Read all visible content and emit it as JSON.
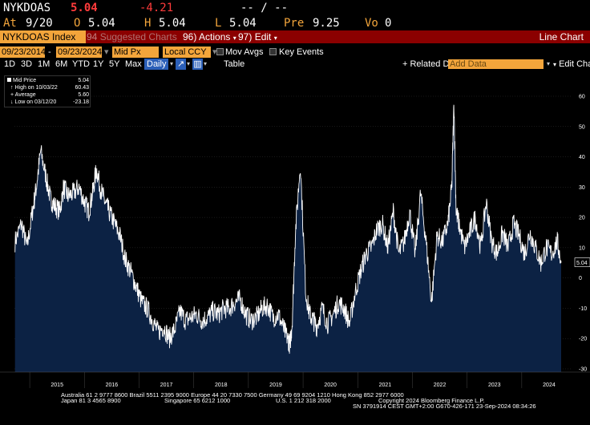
{
  "quote": {
    "ticker": "NYKDOAS",
    "last": "5.04",
    "change": "-4.21",
    "time_dashes": "-- / --",
    "at_label": "At",
    "date": "9/20",
    "open_label": "O",
    "open": "5.04",
    "high_label": "H",
    "high": "5.04",
    "low_label": "L",
    "low": "5.04",
    "prev_label": "Pre",
    "prev": "9.25",
    "vol_label": "Vo",
    "vol": "0"
  },
  "toolbar": {
    "security": "NYKDOAS Index",
    "suggested": "Suggested Charts",
    "actions_num": "96",
    "actions": "Actions",
    "edit_num": "97",
    "edit": "Edit",
    "title": "Line Chart"
  },
  "params": {
    "start": "09/23/2014",
    "end": "09/23/2024",
    "field": "Mid Px",
    "currency": "Local CCY",
    "mov_avgs": "Mov Avgs",
    "key_events": "Key Events"
  },
  "periods": [
    "1D",
    "3D",
    "1M",
    "6M",
    "YTD",
    "1Y",
    "5Y",
    "Max"
  ],
  "freq": "Daily",
  "table_label": "Table",
  "related": "+ Related Dat",
  "add_data_placeholder": "Add Data",
  "edit_chart": "Edit Chart",
  "legend": {
    "mid_price_label": "Mid Price",
    "mid_price": "5.04",
    "high_label": "High on 10/03/22",
    "high": "60.43",
    "avg_label": "Average",
    "avg": "5.60",
    "low_label": "Low on 03/12/20",
    "low": "-23.18"
  },
  "colors": {
    "fill": "#0c2244",
    "line": "#ffffff",
    "accent": "#f3a53b",
    "bar": "#8b0000"
  },
  "chart_data": {
    "type": "area",
    "ylim": [
      -30,
      65
    ],
    "yticks": [
      -30,
      -20,
      -10,
      0,
      10,
      20,
      30,
      40,
      50,
      60
    ],
    "years": [
      "2015",
      "2016",
      "2017",
      "2018",
      "2019",
      "2020",
      "2021",
      "2022",
      "2023",
      "2024"
    ],
    "last_value_label": "5.04",
    "series": [
      {
        "x": [
          2014.73,
          2014.85,
          2014.95,
          2015.05,
          2015.12,
          2015.2,
          2015.3,
          2015.38,
          2015.45,
          2015.55,
          2015.62,
          2015.7,
          2015.8,
          2015.9,
          2016.0,
          2016.08,
          2016.15,
          2016.22,
          2016.3,
          2016.38,
          2016.45,
          2016.55,
          2016.65,
          2016.75,
          2016.85,
          2016.95,
          2017.05,
          2017.15,
          2017.25,
          2017.35,
          2017.45,
          2017.55,
          2017.65,
          2017.75,
          2017.85,
          2017.95,
          2018.05,
          2018.15,
          2018.25,
          2018.35,
          2018.45,
          2018.55,
          2018.65,
          2018.75,
          2018.85,
          2018.95,
          2019.05,
          2019.15,
          2019.25,
          2019.35,
          2019.45,
          2019.55,
          2019.65,
          2019.72,
          2019.76,
          2019.8,
          2019.86,
          2019.95,
          2020.05,
          2020.12,
          2020.19,
          2020.25,
          2020.35,
          2020.45,
          2020.55,
          2020.65,
          2020.75,
          2020.85,
          2020.95,
          2021.05,
          2021.15,
          2021.25,
          2021.35,
          2021.45,
          2021.55,
          2021.65,
          2021.75,
          2021.85,
          2021.95,
          2022.05,
          2022.15,
          2022.25,
          2022.35,
          2022.45,
          2022.55,
          2022.65,
          2022.72,
          2022.76,
          2022.8,
          2022.85,
          2022.95,
          2023.05,
          2023.15,
          2023.25,
          2023.35,
          2023.45,
          2023.55,
          2023.65,
          2023.75,
          2023.85,
          2023.95,
          2024.05,
          2024.15,
          2024.25,
          2024.35,
          2024.45,
          2024.55,
          2024.65,
          2024.72
        ],
        "y": [
          12,
          18,
          10,
          22,
          30,
          42,
          33,
          26,
          24,
          22,
          30,
          27,
          28,
          30,
          25,
          22,
          28,
          36,
          29,
          25,
          22,
          18,
          14,
          6,
          2,
          -3,
          -8,
          -10,
          -14,
          -18,
          -16,
          -20,
          -17,
          -11,
          -14,
          -13,
          -12,
          -14,
          -13,
          -11,
          -12,
          -10,
          -10,
          -8,
          -7,
          -12,
          -14,
          -13,
          -10,
          -9,
          -13,
          -12,
          -17,
          -20,
          -22,
          -15,
          15,
          38,
          -5,
          -12,
          -14,
          -16,
          -10,
          -15,
          -12,
          -8,
          -10,
          -15,
          -5,
          2,
          8,
          10,
          16,
          18,
          10,
          22,
          8,
          12,
          22,
          8,
          28,
          12,
          -8,
          14,
          12,
          18,
          30,
          58,
          22,
          18,
          10,
          15,
          20,
          10,
          25,
          12,
          8,
          15,
          10,
          18,
          14,
          8,
          15,
          10,
          5,
          10,
          8,
          12,
          5.04
        ]
      }
    ]
  },
  "footer": {
    "line1": "Australia 61 2 9777 8600 Brazil 5511 2395 9000 Europe 44 20 7330 7500 Germany 49 69 9204 1210 Hong Kong 852 2977 6000",
    "line2a": "Japan 81 3 4565 8900",
    "line2b": "Singapore 65 6212 1000",
    "line2c": "U.S. 1 212 318 2000",
    "line2d": "Copyright 2024 Bloomberg Finance L.P.",
    "line3": "SN 3791914 CEST GMT+2:00 G670-426-171 23-Sep-2024 08:34:26"
  }
}
